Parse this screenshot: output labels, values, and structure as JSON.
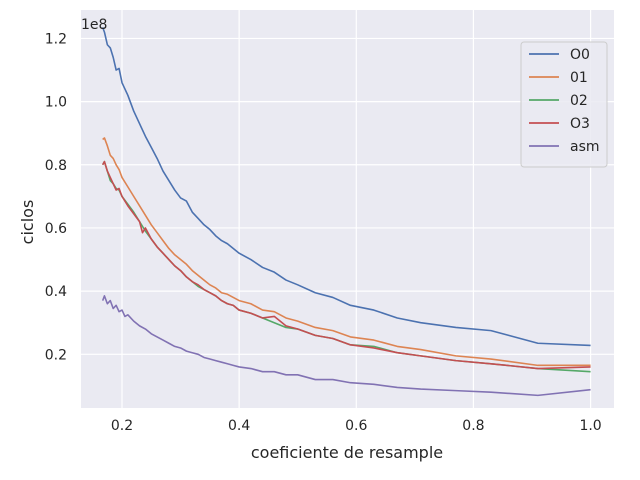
{
  "chart_data": {
    "type": "line",
    "xlabel": "coeficiente de resample",
    "ylabel": "ciclos",
    "y_offset_text": "1e8",
    "xlim": [
      0.13,
      1.04
    ],
    "ylim": [
      0.03,
      1.29
    ],
    "xticks": [
      0.2,
      0.4,
      0.6,
      0.8,
      1.0
    ],
    "xtick_labels": [
      "0.2",
      "0.4",
      "0.6",
      "0.8",
      "1.0"
    ],
    "yticks": [
      0.2,
      0.4,
      0.6,
      0.8,
      1.0,
      1.2
    ],
    "ytick_labels": [
      "0.2",
      "0.4",
      "0.6",
      "0.8",
      "1.0",
      "1.2"
    ],
    "grid": true,
    "legend_position": "top-right",
    "colors": {
      "background": "#eaeaf2",
      "grid": "#ffffff",
      "O0": "#4c72b0",
      "01": "#dd8452",
      "02": "#55a868",
      "O3": "#c44e52",
      "asm": "#8172b3"
    },
    "series": [
      {
        "name": "O0",
        "points": [
          [
            0.167,
            1.235
          ],
          [
            0.17,
            1.22
          ],
          [
            0.175,
            1.18
          ],
          [
            0.18,
            1.17
          ],
          [
            0.185,
            1.14
          ],
          [
            0.19,
            1.1
          ],
          [
            0.195,
            1.105
          ],
          [
            0.2,
            1.06
          ],
          [
            0.21,
            1.02
          ],
          [
            0.22,
            0.97
          ],
          [
            0.23,
            0.93
          ],
          [
            0.24,
            0.89
          ],
          [
            0.25,
            0.855
          ],
          [
            0.26,
            0.82
          ],
          [
            0.27,
            0.78
          ],
          [
            0.28,
            0.75
          ],
          [
            0.29,
            0.72
          ],
          [
            0.3,
            0.695
          ],
          [
            0.31,
            0.685
          ],
          [
            0.32,
            0.65
          ],
          [
            0.33,
            0.63
          ],
          [
            0.34,
            0.61
          ],
          [
            0.35,
            0.595
          ],
          [
            0.36,
            0.575
          ],
          [
            0.37,
            0.56
          ],
          [
            0.38,
            0.55
          ],
          [
            0.39,
            0.535
          ],
          [
            0.4,
            0.52
          ],
          [
            0.42,
            0.5
          ],
          [
            0.44,
            0.475
          ],
          [
            0.46,
            0.46
          ],
          [
            0.48,
            0.435
          ],
          [
            0.5,
            0.42
          ],
          [
            0.53,
            0.395
          ],
          [
            0.56,
            0.38
          ],
          [
            0.59,
            0.355
          ],
          [
            0.63,
            0.34
          ],
          [
            0.67,
            0.315
          ],
          [
            0.71,
            0.3
          ],
          [
            0.77,
            0.285
          ],
          [
            0.83,
            0.275
          ],
          [
            0.91,
            0.235
          ],
          [
            1.0,
            0.228
          ]
        ]
      },
      {
        "name": "01",
        "points": [
          [
            0.167,
            0.88
          ],
          [
            0.17,
            0.885
          ],
          [
            0.175,
            0.86
          ],
          [
            0.18,
            0.83
          ],
          [
            0.185,
            0.82
          ],
          [
            0.19,
            0.8
          ],
          [
            0.195,
            0.785
          ],
          [
            0.2,
            0.76
          ],
          [
            0.21,
            0.73
          ],
          [
            0.22,
            0.7
          ],
          [
            0.23,
            0.67
          ],
          [
            0.24,
            0.64
          ],
          [
            0.25,
            0.61
          ],
          [
            0.26,
            0.585
          ],
          [
            0.27,
            0.56
          ],
          [
            0.28,
            0.535
          ],
          [
            0.29,
            0.515
          ],
          [
            0.3,
            0.5
          ],
          [
            0.31,
            0.485
          ],
          [
            0.32,
            0.465
          ],
          [
            0.33,
            0.45
          ],
          [
            0.34,
            0.435
          ],
          [
            0.35,
            0.42
          ],
          [
            0.36,
            0.41
          ],
          [
            0.37,
            0.395
          ],
          [
            0.38,
            0.39
          ],
          [
            0.39,
            0.38
          ],
          [
            0.4,
            0.37
          ],
          [
            0.42,
            0.36
          ],
          [
            0.44,
            0.34
          ],
          [
            0.46,
            0.335
          ],
          [
            0.48,
            0.315
          ],
          [
            0.5,
            0.305
          ],
          [
            0.53,
            0.285
          ],
          [
            0.56,
            0.275
          ],
          [
            0.59,
            0.255
          ],
          [
            0.63,
            0.245
          ],
          [
            0.67,
            0.225
          ],
          [
            0.71,
            0.215
          ],
          [
            0.77,
            0.195
          ],
          [
            0.83,
            0.185
          ],
          [
            0.91,
            0.165
          ],
          [
            1.0,
            0.165
          ]
        ]
      },
      {
        "name": "02",
        "points": [
          [
            0.167,
            0.8
          ],
          [
            0.17,
            0.81
          ],
          [
            0.175,
            0.78
          ],
          [
            0.18,
            0.75
          ],
          [
            0.185,
            0.74
          ],
          [
            0.19,
            0.725
          ],
          [
            0.195,
            0.72
          ],
          [
            0.2,
            0.7
          ],
          [
            0.21,
            0.675
          ],
          [
            0.22,
            0.65
          ],
          [
            0.23,
            0.62
          ],
          [
            0.24,
            0.59
          ],
          [
            0.25,
            0.565
          ],
          [
            0.26,
            0.54
          ],
          [
            0.27,
            0.52
          ],
          [
            0.28,
            0.5
          ],
          [
            0.29,
            0.48
          ],
          [
            0.3,
            0.465
          ],
          [
            0.31,
            0.445
          ],
          [
            0.32,
            0.43
          ],
          [
            0.33,
            0.415
          ],
          [
            0.34,
            0.405
          ],
          [
            0.35,
            0.395
          ],
          [
            0.36,
            0.385
          ],
          [
            0.37,
            0.37
          ],
          [
            0.38,
            0.36
          ],
          [
            0.39,
            0.355
          ],
          [
            0.4,
            0.34
          ],
          [
            0.42,
            0.33
          ],
          [
            0.44,
            0.315
          ],
          [
            0.46,
            0.3
          ],
          [
            0.48,
            0.285
          ],
          [
            0.5,
            0.28
          ],
          [
            0.53,
            0.26
          ],
          [
            0.56,
            0.25
          ],
          [
            0.59,
            0.23
          ],
          [
            0.63,
            0.225
          ],
          [
            0.67,
            0.205
          ],
          [
            0.71,
            0.195
          ],
          [
            0.77,
            0.18
          ],
          [
            0.83,
            0.17
          ],
          [
            0.91,
            0.155
          ],
          [
            1.0,
            0.145
          ]
        ]
      },
      {
        "name": "O3",
        "points": [
          [
            0.167,
            0.8
          ],
          [
            0.17,
            0.81
          ],
          [
            0.175,
            0.78
          ],
          [
            0.18,
            0.76
          ],
          [
            0.185,
            0.74
          ],
          [
            0.19,
            0.72
          ],
          [
            0.195,
            0.725
          ],
          [
            0.2,
            0.7
          ],
          [
            0.21,
            0.67
          ],
          [
            0.22,
            0.645
          ],
          [
            0.23,
            0.62
          ],
          [
            0.235,
            0.585
          ],
          [
            0.24,
            0.6
          ],
          [
            0.25,
            0.565
          ],
          [
            0.26,
            0.54
          ],
          [
            0.27,
            0.52
          ],
          [
            0.28,
            0.5
          ],
          [
            0.29,
            0.48
          ],
          [
            0.3,
            0.465
          ],
          [
            0.31,
            0.445
          ],
          [
            0.32,
            0.43
          ],
          [
            0.33,
            0.42
          ],
          [
            0.34,
            0.405
          ],
          [
            0.35,
            0.395
          ],
          [
            0.36,
            0.385
          ],
          [
            0.37,
            0.37
          ],
          [
            0.38,
            0.36
          ],
          [
            0.39,
            0.355
          ],
          [
            0.4,
            0.34
          ],
          [
            0.42,
            0.33
          ],
          [
            0.44,
            0.315
          ],
          [
            0.46,
            0.32
          ],
          [
            0.48,
            0.29
          ],
          [
            0.5,
            0.28
          ],
          [
            0.53,
            0.26
          ],
          [
            0.56,
            0.25
          ],
          [
            0.59,
            0.23
          ],
          [
            0.63,
            0.22
          ],
          [
            0.67,
            0.205
          ],
          [
            0.71,
            0.195
          ],
          [
            0.77,
            0.18
          ],
          [
            0.83,
            0.17
          ],
          [
            0.91,
            0.155
          ],
          [
            1.0,
            0.16
          ]
        ]
      },
      {
        "name": "asm",
        "points": [
          [
            0.167,
            0.37
          ],
          [
            0.17,
            0.385
          ],
          [
            0.175,
            0.36
          ],
          [
            0.18,
            0.37
          ],
          [
            0.185,
            0.345
          ],
          [
            0.19,
            0.355
          ],
          [
            0.195,
            0.335
          ],
          [
            0.2,
            0.34
          ],
          [
            0.205,
            0.32
          ],
          [
            0.21,
            0.325
          ],
          [
            0.22,
            0.305
          ],
          [
            0.23,
            0.29
          ],
          [
            0.24,
            0.28
          ],
          [
            0.25,
            0.265
          ],
          [
            0.26,
            0.255
          ],
          [
            0.27,
            0.245
          ],
          [
            0.28,
            0.235
          ],
          [
            0.29,
            0.225
          ],
          [
            0.3,
            0.22
          ],
          [
            0.31,
            0.21
          ],
          [
            0.32,
            0.205
          ],
          [
            0.33,
            0.2
          ],
          [
            0.34,
            0.19
          ],
          [
            0.35,
            0.185
          ],
          [
            0.36,
            0.18
          ],
          [
            0.37,
            0.175
          ],
          [
            0.38,
            0.17
          ],
          [
            0.39,
            0.165
          ],
          [
            0.4,
            0.16
          ],
          [
            0.42,
            0.155
          ],
          [
            0.44,
            0.145
          ],
          [
            0.46,
            0.145
          ],
          [
            0.48,
            0.135
          ],
          [
            0.5,
            0.135
          ],
          [
            0.53,
            0.12
          ],
          [
            0.56,
            0.12
          ],
          [
            0.59,
            0.11
          ],
          [
            0.63,
            0.105
          ],
          [
            0.67,
            0.095
          ],
          [
            0.71,
            0.09
          ],
          [
            0.77,
            0.085
          ],
          [
            0.83,
            0.08
          ],
          [
            0.91,
            0.07
          ],
          [
            1.0,
            0.088
          ]
        ]
      }
    ]
  }
}
